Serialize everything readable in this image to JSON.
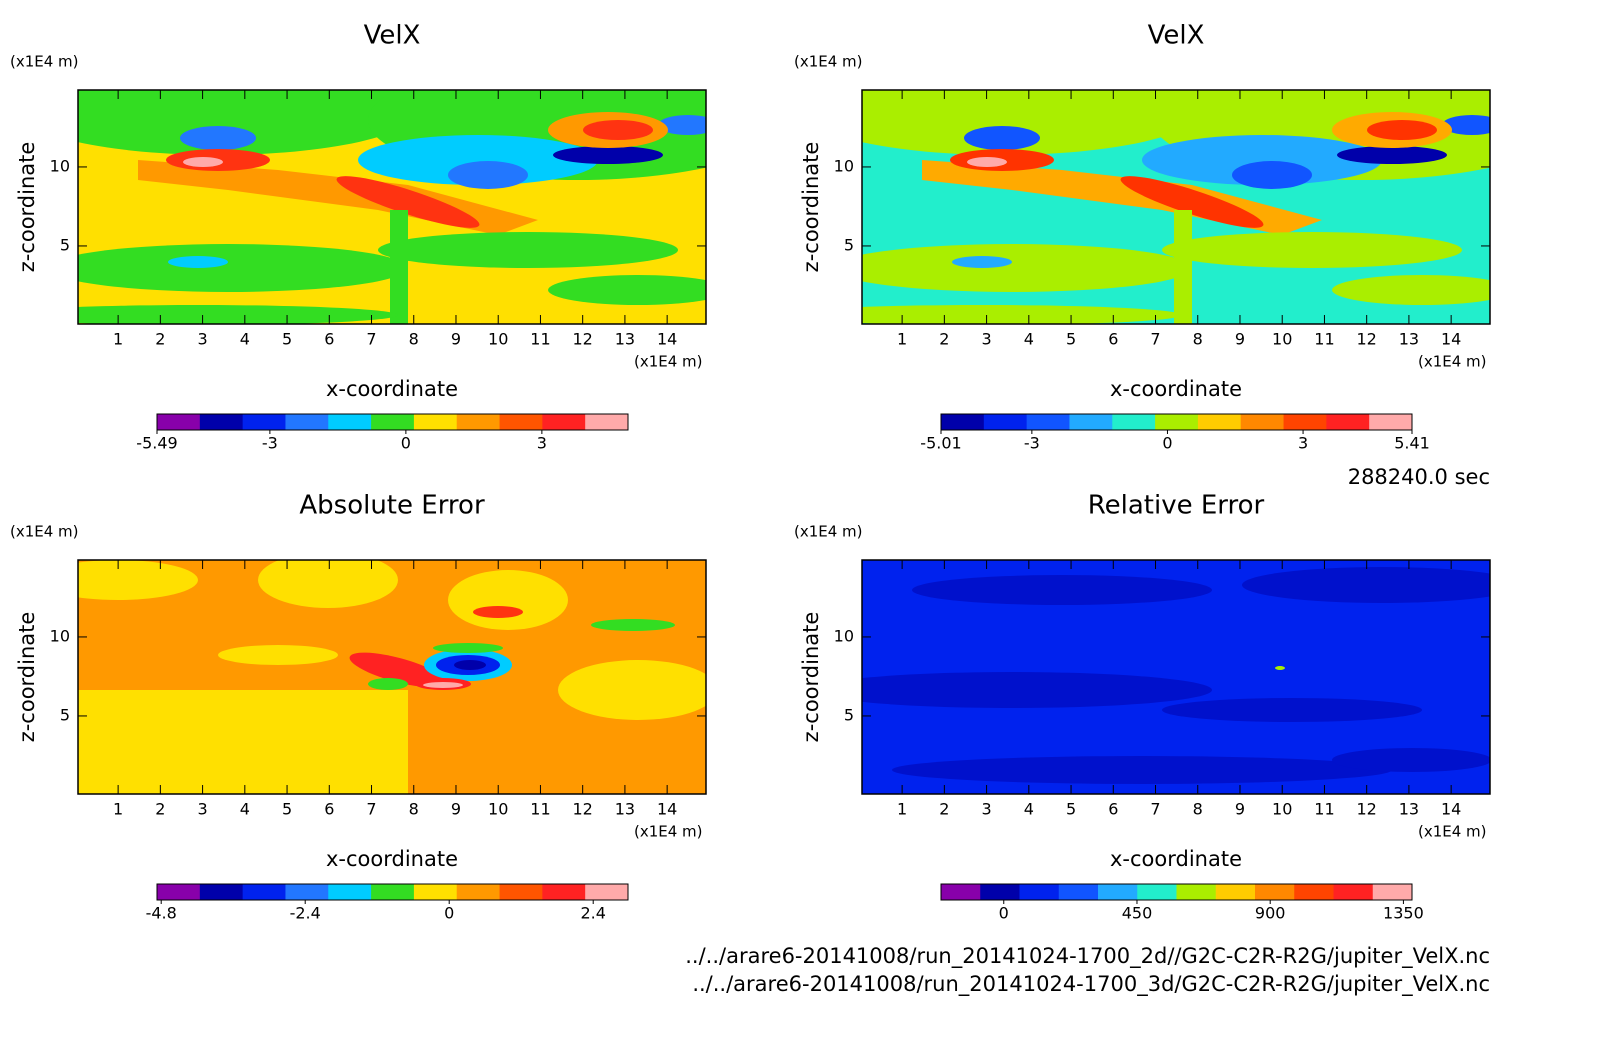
{
  "chart_data": [
    {
      "type": "contour",
      "title": "VelX",
      "xlabel": "x-coordinate",
      "ylabel": "z-coordinate",
      "xunit": "(x1E4 m)",
      "yunit": "(x1E4 m)",
      "xlim": [
        0.05,
        14.92
      ],
      "xticks": [
        1,
        2,
        3,
        4,
        5,
        6,
        7,
        8,
        9,
        10,
        11,
        12,
        13,
        14
      ],
      "ylim": [
        0.06,
        14.87
      ],
      "yticks": [
        5,
        10
      ],
      "clim": [
        -5.49,
        4.9
      ],
      "cticks": [
        -5.49,
        -3,
        0,
        3
      ],
      "colors": [
        "#8800aa",
        "#0000aa",
        "#0022ee",
        "#2277ff",
        "#00ccff",
        "#33dd22",
        "#ffe000",
        "#ff9900",
        "#ff5500",
        "#ff2222",
        "#ffaaaa"
      ]
    },
    {
      "type": "contour",
      "title": "VelX",
      "xlabel": "x-coordinate",
      "ylabel": "z-coordinate",
      "xunit": "(x1E4 m)",
      "yunit": "(x1E4 m)",
      "xlim": [
        0.05,
        14.92
      ],
      "xticks": [
        1,
        2,
        3,
        4,
        5,
        6,
        7,
        8,
        9,
        10,
        11,
        12,
        13,
        14
      ],
      "ylim": [
        0.06,
        14.87
      ],
      "yticks": [
        5,
        10
      ],
      "clim": [
        -5.01,
        5.41
      ],
      "cticks": [
        -5.01,
        -3,
        0,
        3,
        5.41
      ],
      "colors": [
        "#0000aa",
        "#0022ee",
        "#1155ff",
        "#22aaff",
        "#22eecc",
        "#aaee00",
        "#ffcc00",
        "#ff8800",
        "#ff4400",
        "#ff2222",
        "#ffaaaa"
      ]
    },
    {
      "type": "contour",
      "title": "Absolute Error",
      "xlabel": "x-coordinate",
      "ylabel": "z-coordinate",
      "xunit": "(x1E4 m)",
      "yunit": "(x1E4 m)",
      "xlim": [
        0.05,
        14.92
      ],
      "xticks": [
        1,
        2,
        3,
        4,
        5,
        6,
        7,
        8,
        9,
        10,
        11,
        12,
        13,
        14
      ],
      "ylim": [
        0.06,
        14.87
      ],
      "yticks": [
        5,
        10
      ],
      "clim": [
        -4.87,
        2.98
      ],
      "cticks": [
        -4.8,
        -2.4,
        0,
        2.4
      ],
      "colors": [
        "#8800aa",
        "#0000aa",
        "#0022ee",
        "#2277ff",
        "#00ccff",
        "#33dd22",
        "#ffe000",
        "#ff9900",
        "#ff5500",
        "#ff2222",
        "#ffaaaa"
      ]
    },
    {
      "type": "contour",
      "title": "Relative Error",
      "xlabel": "x-coordinate",
      "ylabel": "z-coordinate",
      "xunit": "(x1E4 m)",
      "yunit": "(x1E4 m)",
      "xlim": [
        0.05,
        14.92
      ],
      "xticks": [
        1,
        2,
        3,
        4,
        5,
        6,
        7,
        8,
        9,
        10,
        11,
        12,
        13,
        14
      ],
      "ylim": [
        0.06,
        14.87
      ],
      "yticks": [
        5,
        10
      ],
      "clim": [
        -212,
        1379
      ],
      "cticks": [
        0,
        450,
        900,
        1350
      ],
      "colors": [
        "#8800aa",
        "#0000aa",
        "#0022ee",
        "#1155ff",
        "#22aaff",
        "#22eecc",
        "#aaee00",
        "#ffcc00",
        "#ff8800",
        "#ff4400",
        "#ff2222",
        "#ffaaaa"
      ]
    }
  ],
  "time": "288240.0 sec",
  "files": [
    "../../arare6-20141008/run_20141024-1700_2d//G2C-C2R-R2G/jupiter_VelX.nc",
    "../../arare6-20141008/run_20141024-1700_3d/G2C-C2R-R2G/jupiter_VelX.nc"
  ]
}
